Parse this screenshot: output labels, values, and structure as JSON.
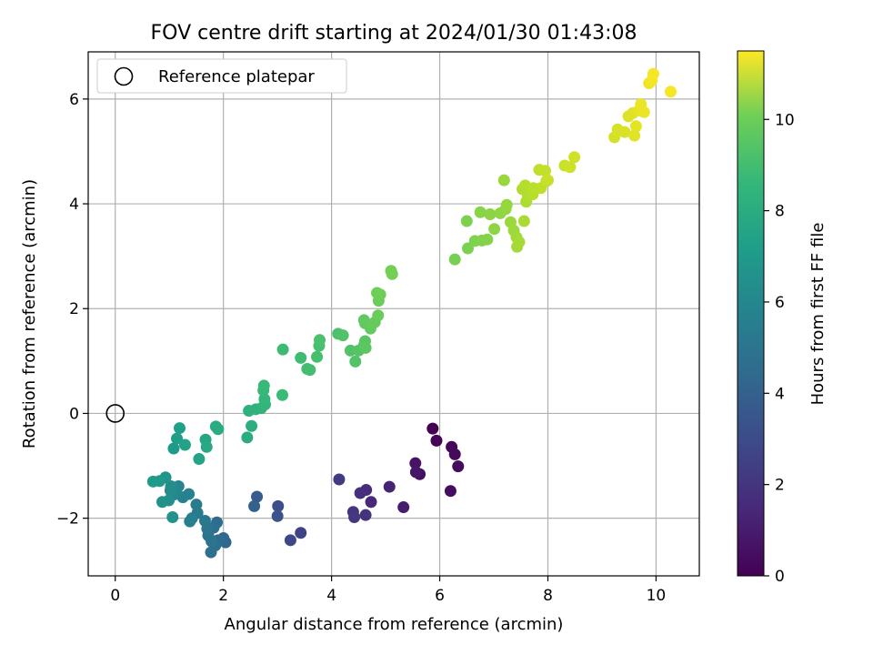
{
  "chart_data": {
    "type": "scatter",
    "title": "FOV centre drift starting at 2024/01/30 01:43:08",
    "xlabel": "Angular distance from reference (arcmin)",
    "ylabel": "Rotation from reference (arcmin)",
    "xlim": [
      -0.5,
      10.8
    ],
    "ylim": [
      -3.1,
      6.9
    ],
    "x_ticks": [
      "0",
      "2",
      "4",
      "6",
      "8",
      "10"
    ],
    "y_ticks": [
      "−2",
      "0",
      "2",
      "4",
      "6"
    ],
    "grid": true,
    "legend_position": "top-left",
    "legend_label": "Reference platepar",
    "reference_point": {
      "x": 0,
      "y": 0
    },
    "colorbar": {
      "label": "Hours from first FF file",
      "range": [
        0,
        11.5
      ],
      "ticks": [
        "0",
        "2",
        "4",
        "6",
        "8",
        "10"
      ],
      "colormap": "viridis"
    },
    "points": [
      {
        "x": 5.87,
        "y": -0.29,
        "h": 0.0
      },
      {
        "x": 5.94,
        "y": -0.52,
        "h": 0.1
      },
      {
        "x": 6.22,
        "y": -0.64,
        "h": 0.2
      },
      {
        "x": 6.28,
        "y": -0.78,
        "h": 0.3
      },
      {
        "x": 6.34,
        "y": -1.01,
        "h": 0.35
      },
      {
        "x": 6.2,
        "y": -1.48,
        "h": 0.4
      },
      {
        "x": 5.63,
        "y": -1.16,
        "h": 0.5
      },
      {
        "x": 5.55,
        "y": -0.95,
        "h": 0.6
      },
      {
        "x": 5.56,
        "y": -1.12,
        "h": 0.7
      },
      {
        "x": 5.33,
        "y": -1.79,
        "h": 0.9
      },
      {
        "x": 5.07,
        "y": -1.4,
        "h": 1.1
      },
      {
        "x": 4.73,
        "y": -1.69,
        "h": 1.3
      },
      {
        "x": 4.64,
        "y": -1.46,
        "h": 1.5
      },
      {
        "x": 4.53,
        "y": -1.52,
        "h": 1.6
      },
      {
        "x": 4.63,
        "y": -1.94,
        "h": 1.7
      },
      {
        "x": 4.4,
        "y": -1.88,
        "h": 1.8
      },
      {
        "x": 4.42,
        "y": -1.98,
        "h": 1.9
      },
      {
        "x": 4.14,
        "y": -1.26,
        "h": 2.0
      },
      {
        "x": 3.43,
        "y": -2.28,
        "h": 2.3
      },
      {
        "x": 3.24,
        "y": -2.42,
        "h": 2.5
      },
      {
        "x": 3.01,
        "y": -1.77,
        "h": 2.8
      },
      {
        "x": 3.0,
        "y": -1.96,
        "h": 3.0
      },
      {
        "x": 2.62,
        "y": -1.59,
        "h": 3.3
      },
      {
        "x": 2.57,
        "y": -1.77,
        "h": 3.5
      },
      {
        "x": 2.04,
        "y": -2.46,
        "h": 3.8
      },
      {
        "x": 2.0,
        "y": -2.38,
        "h": 3.9
      },
      {
        "x": 1.9,
        "y": -2.42,
        "h": 4.0
      },
      {
        "x": 1.88,
        "y": -2.08,
        "h": 4.1
      },
      {
        "x": 1.82,
        "y": -2.18,
        "h": 4.15
      },
      {
        "x": 1.85,
        "y": -2.52,
        "h": 4.2
      },
      {
        "x": 1.77,
        "y": -2.65,
        "h": 4.3
      },
      {
        "x": 1.78,
        "y": -2.44,
        "h": 4.35
      },
      {
        "x": 1.72,
        "y": -2.33,
        "h": 4.4
      },
      {
        "x": 1.7,
        "y": -2.2,
        "h": 4.5
      },
      {
        "x": 1.66,
        "y": -2.05,
        "h": 4.6
      },
      {
        "x": 1.52,
        "y": -1.9,
        "h": 4.7
      },
      {
        "x": 1.5,
        "y": -1.74,
        "h": 4.8
      },
      {
        "x": 1.42,
        "y": -2.0,
        "h": 4.9
      },
      {
        "x": 1.38,
        "y": -2.06,
        "h": 5.0
      },
      {
        "x": 1.36,
        "y": -1.54,
        "h": 5.05
      },
      {
        "x": 1.25,
        "y": -1.6,
        "h": 5.1
      },
      {
        "x": 1.17,
        "y": -1.39,
        "h": 5.2
      },
      {
        "x": 1.12,
        "y": -1.48,
        "h": 5.3
      },
      {
        "x": 1.08,
        "y": -1.55,
        "h": 5.4
      },
      {
        "x": 1.02,
        "y": -1.47,
        "h": 5.5
      },
      {
        "x": 1.03,
        "y": -1.39,
        "h": 5.6
      },
      {
        "x": 0.99,
        "y": -1.66,
        "h": 5.7
      },
      {
        "x": 0.87,
        "y": -1.69,
        "h": 5.8
      },
      {
        "x": 1.06,
        "y": -1.98,
        "h": 5.9
      },
      {
        "x": 0.93,
        "y": -1.22,
        "h": 6.0
      },
      {
        "x": 0.82,
        "y": -1.29,
        "h": 6.1
      },
      {
        "x": 0.7,
        "y": -1.3,
        "h": 6.2
      },
      {
        "x": 1.08,
        "y": -0.67,
        "h": 6.3
      },
      {
        "x": 1.14,
        "y": -0.48,
        "h": 6.4
      },
      {
        "x": 1.19,
        "y": -0.28,
        "h": 6.5
      },
      {
        "x": 1.29,
        "y": -0.6,
        "h": 6.6
      },
      {
        "x": 1.55,
        "y": -0.87,
        "h": 6.7
      },
      {
        "x": 1.67,
        "y": -0.5,
        "h": 6.8
      },
      {
        "x": 1.69,
        "y": -0.64,
        "h": 6.9
      },
      {
        "x": 1.86,
        "y": -0.25,
        "h": 7.0
      },
      {
        "x": 1.9,
        "y": -0.3,
        "h": 7.05
      },
      {
        "x": 2.44,
        "y": -0.46,
        "h": 7.1
      },
      {
        "x": 2.52,
        "y": -0.24,
        "h": 7.2
      },
      {
        "x": 2.47,
        "y": 0.05,
        "h": 7.3
      },
      {
        "x": 2.6,
        "y": 0.08,
        "h": 7.35
      },
      {
        "x": 2.7,
        "y": 0.1,
        "h": 7.4
      },
      {
        "x": 2.77,
        "y": 0.17,
        "h": 7.5
      },
      {
        "x": 2.76,
        "y": 0.27,
        "h": 7.6
      },
      {
        "x": 2.74,
        "y": 0.44,
        "h": 7.7
      },
      {
        "x": 2.75,
        "y": 0.53,
        "h": 7.75
      },
      {
        "x": 3.09,
        "y": 0.35,
        "h": 7.8
      },
      {
        "x": 3.1,
        "y": 1.22,
        "h": 7.85
      },
      {
        "x": 3.43,
        "y": 1.06,
        "h": 7.9
      },
      {
        "x": 3.55,
        "y": 0.85,
        "h": 7.95
      },
      {
        "x": 3.6,
        "y": 0.83,
        "h": 8.0
      },
      {
        "x": 3.73,
        "y": 1.08,
        "h": 8.05
      },
      {
        "x": 3.77,
        "y": 1.29,
        "h": 8.1
      },
      {
        "x": 3.78,
        "y": 1.4,
        "h": 8.15
      },
      {
        "x": 4.12,
        "y": 1.52,
        "h": 8.2
      },
      {
        "x": 4.21,
        "y": 1.49,
        "h": 8.25
      },
      {
        "x": 4.35,
        "y": 1.2,
        "h": 8.3
      },
      {
        "x": 4.44,
        "y": 0.99,
        "h": 8.35
      },
      {
        "x": 4.5,
        "y": 1.2,
        "h": 8.4
      },
      {
        "x": 4.6,
        "y": 1.3,
        "h": 8.45
      },
      {
        "x": 4.62,
        "y": 1.38,
        "h": 8.5
      },
      {
        "x": 4.63,
        "y": 1.25,
        "h": 8.55
      },
      {
        "x": 4.6,
        "y": 1.78,
        "h": 8.6
      },
      {
        "x": 4.62,
        "y": 1.72,
        "h": 8.65
      },
      {
        "x": 4.72,
        "y": 1.62,
        "h": 8.7
      },
      {
        "x": 4.8,
        "y": 1.74,
        "h": 8.75
      },
      {
        "x": 4.86,
        "y": 1.87,
        "h": 8.8
      },
      {
        "x": 4.87,
        "y": 2.15,
        "h": 8.85
      },
      {
        "x": 4.84,
        "y": 2.3,
        "h": 8.9
      },
      {
        "x": 4.9,
        "y": 2.27,
        "h": 8.95
      },
      {
        "x": 5.1,
        "y": 2.72,
        "h": 9.0
      },
      {
        "x": 5.12,
        "y": 2.66,
        "h": 9.05
      },
      {
        "x": 6.28,
        "y": 2.94,
        "h": 9.1
      },
      {
        "x": 6.52,
        "y": 3.15,
        "h": 9.15
      },
      {
        "x": 6.5,
        "y": 3.67,
        "h": 9.2
      },
      {
        "x": 6.65,
        "y": 3.29,
        "h": 9.25
      },
      {
        "x": 6.78,
        "y": 3.3,
        "h": 9.3
      },
      {
        "x": 6.88,
        "y": 3.32,
        "h": 9.35
      },
      {
        "x": 6.75,
        "y": 3.84,
        "h": 9.4
      },
      {
        "x": 6.93,
        "y": 3.8,
        "h": 9.45
      },
      {
        "x": 7.01,
        "y": 3.52,
        "h": 9.5
      },
      {
        "x": 7.12,
        "y": 3.82,
        "h": 9.55
      },
      {
        "x": 7.22,
        "y": 3.9,
        "h": 9.6
      },
      {
        "x": 7.24,
        "y": 3.98,
        "h": 9.65
      },
      {
        "x": 7.19,
        "y": 4.45,
        "h": 9.7
      },
      {
        "x": 7.31,
        "y": 3.65,
        "h": 9.75
      },
      {
        "x": 7.37,
        "y": 3.49,
        "h": 9.8
      },
      {
        "x": 7.42,
        "y": 3.36,
        "h": 9.85
      },
      {
        "x": 7.43,
        "y": 3.18,
        "h": 9.9
      },
      {
        "x": 7.47,
        "y": 3.27,
        "h": 9.95
      },
      {
        "x": 7.56,
        "y": 3.67,
        "h": 10.0
      },
      {
        "x": 7.6,
        "y": 4.04,
        "h": 10.05
      },
      {
        "x": 7.53,
        "y": 4.28,
        "h": 10.1
      },
      {
        "x": 7.63,
        "y": 4.15,
        "h": 10.15
      },
      {
        "x": 7.58,
        "y": 4.35,
        "h": 10.2
      },
      {
        "x": 7.72,
        "y": 4.18,
        "h": 10.25
      },
      {
        "x": 7.73,
        "y": 4.3,
        "h": 10.3
      },
      {
        "x": 7.87,
        "y": 4.3,
        "h": 10.35
      },
      {
        "x": 7.84,
        "y": 4.65,
        "h": 10.4
      },
      {
        "x": 7.95,
        "y": 4.63,
        "h": 10.45
      },
      {
        "x": 7.97,
        "y": 4.43,
        "h": 10.5
      },
      {
        "x": 8.0,
        "y": 4.45,
        "h": 10.55
      },
      {
        "x": 8.31,
        "y": 4.73,
        "h": 10.6
      },
      {
        "x": 8.41,
        "y": 4.7,
        "h": 10.65
      },
      {
        "x": 8.49,
        "y": 4.89,
        "h": 10.7
      },
      {
        "x": 9.23,
        "y": 5.27,
        "h": 10.75
      },
      {
        "x": 9.29,
        "y": 5.42,
        "h": 10.8
      },
      {
        "x": 9.42,
        "y": 5.37,
        "h": 10.85
      },
      {
        "x": 9.49,
        "y": 5.67,
        "h": 10.9
      },
      {
        "x": 9.57,
        "y": 5.73,
        "h": 10.95
      },
      {
        "x": 9.6,
        "y": 5.3,
        "h": 11.0
      },
      {
        "x": 9.63,
        "y": 5.48,
        "h": 11.05
      },
      {
        "x": 9.68,
        "y": 5.78,
        "h": 11.1
      },
      {
        "x": 9.72,
        "y": 5.9,
        "h": 11.15
      },
      {
        "x": 9.78,
        "y": 5.75,
        "h": 11.2
      },
      {
        "x": 9.87,
        "y": 6.3,
        "h": 11.25
      },
      {
        "x": 9.92,
        "y": 6.35,
        "h": 11.3
      },
      {
        "x": 9.95,
        "y": 6.48,
        "h": 11.35
      },
      {
        "x": 10.27,
        "y": 6.14,
        "h": 11.4
      }
    ]
  }
}
